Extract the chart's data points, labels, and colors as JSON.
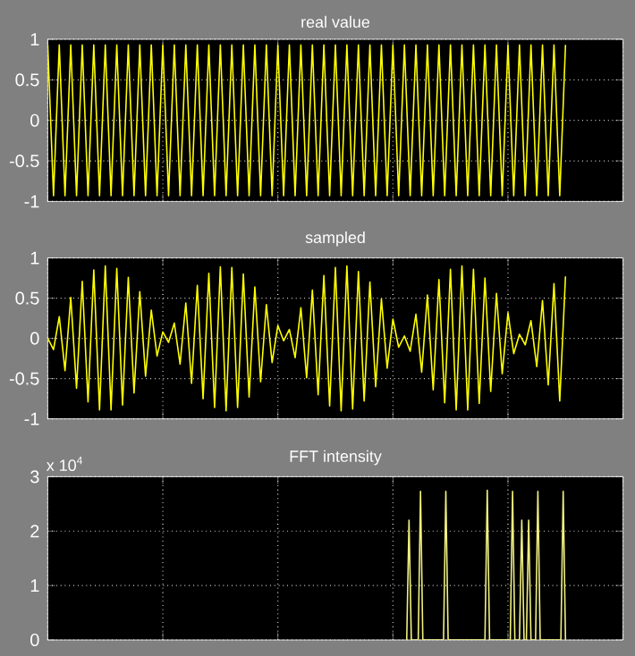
{
  "chart_data": [
    {
      "type": "line",
      "title": "real value",
      "ylim": [
        -1,
        1
      ],
      "yticks": [
        -1,
        -0.5,
        0,
        0.5,
        1
      ],
      "grid": true,
      "categories": [
        null,
        null,
        null,
        null,
        null,
        null,
        null,
        null,
        null,
        null,
        null,
        null,
        null,
        null,
        null,
        null,
        null,
        null,
        null,
        null,
        null,
        null,
        null,
        null,
        null,
        null,
        null,
        null,
        null,
        null,
        null,
        null,
        null,
        null,
        null,
        null,
        null,
        null,
        null,
        null,
        null,
        null,
        null,
        null,
        null,
        null,
        null,
        null,
        null,
        null,
        null,
        null,
        null,
        null,
        null,
        null,
        null,
        null,
        null,
        null,
        null,
        null,
        null,
        null,
        null,
        null,
        null,
        null,
        null,
        null,
        null,
        null,
        null,
        null,
        null,
        null,
        null,
        null,
        null,
        null,
        null,
        null,
        null,
        null,
        null,
        null,
        null,
        null,
        null,
        null,
        null,
        null,
        null,
        null,
        null,
        null,
        null,
        null,
        null,
        null,
        null
      ],
      "series": [
        {
          "color": "#ffff00",
          "values": [
            0.93,
            -0.93,
            0.93,
            -0.93,
            0.93,
            -0.93,
            0.93,
            -0.93,
            0.93,
            -0.93,
            0.93,
            -0.93,
            0.93,
            -0.93,
            0.93,
            -0.93,
            0.93,
            -0.93,
            0.93,
            -0.93,
            0.93,
            -0.93,
            0.93,
            -0.93,
            0.93,
            -0.93,
            0.93,
            -0.93,
            0.93,
            -0.93,
            0.93,
            -0.93,
            0.93,
            -0.93,
            0.93,
            -0.93,
            0.93,
            -0.93,
            0.93,
            -0.93,
            0.93,
            -0.93,
            0.93,
            -0.93,
            0.93,
            -0.93,
            0.93,
            -0.93,
            0.93,
            -0.93,
            0.93,
            -0.93,
            0.93,
            -0.93,
            0.93,
            -0.93,
            0.93,
            -0.93,
            0.93,
            -0.93,
            0.93,
            -0.93,
            0.93,
            -0.93,
            0.93,
            -0.93,
            0.93,
            -0.93,
            0.93,
            -0.93,
            0.93,
            -0.93,
            0.93,
            -0.93,
            0.93,
            -0.93,
            0.93,
            -0.93,
            0.93,
            -0.93,
            0.93,
            -0.93,
            0.93,
            -0.93,
            0.93,
            -0.93,
            0.93,
            -0.93,
            0.93,
            -0.93,
            0.93,
            null,
            null,
            null,
            null,
            null,
            null,
            null,
            null,
            null,
            null
          ]
        }
      ]
    },
    {
      "type": "line",
      "title": "sampled",
      "ylim": [
        -1,
        1
      ],
      "yticks": [
        -1,
        -0.5,
        0,
        0.5,
        1
      ],
      "grid": true,
      "categories": [
        null,
        null,
        null,
        null,
        null,
        null,
        null,
        null,
        null,
        null,
        null,
        null,
        null,
        null,
        null,
        null,
        null,
        null,
        null,
        null,
        null,
        null,
        null,
        null,
        null,
        null,
        null,
        null,
        null,
        null,
        null,
        null,
        null,
        null,
        null,
        null,
        null,
        null,
        null,
        null,
        null,
        null,
        null,
        null,
        null,
        null,
        null,
        null,
        null,
        null,
        null,
        null,
        null,
        null,
        null,
        null,
        null,
        null,
        null,
        null,
        null,
        null,
        null,
        null,
        null,
        null,
        null,
        null,
        null,
        null,
        null,
        null,
        null,
        null,
        null,
        null,
        null,
        null,
        null,
        null,
        null,
        null,
        null,
        null,
        null,
        null,
        null,
        null,
        null,
        null,
        null,
        null,
        null,
        null,
        null,
        null,
        null,
        null,
        null,
        null,
        null
      ],
      "series": [
        {
          "color": "#ffff00",
          "values": [
            0,
            -0.14,
            0.27,
            -0.4,
            0.51,
            -0.62,
            0.71,
            -0.79,
            0.85,
            -0.89,
            0.9,
            -0.89,
            0.87,
            -0.83,
            0.76,
            -0.68,
            0.58,
            -0.47,
            0.35,
            -0.22,
            0.08,
            -0.05,
            0.19,
            -0.32,
            0.44,
            -0.56,
            0.66,
            -0.75,
            0.81,
            -0.86,
            0.89,
            -0.9,
            0.88,
            -0.86,
            0.8,
            -0.73,
            0.64,
            -0.54,
            0.42,
            -0.3,
            0.16,
            -0.03,
            0.11,
            -0.24,
            0.38,
            -0.49,
            0.6,
            -0.7,
            0.78,
            -0.84,
            0.88,
            -0.9,
            0.9,
            -0.88,
            0.83,
            -0.78,
            0.7,
            -0.6,
            0.49,
            -0.37,
            0.24,
            -0.11,
            0.03,
            -0.16,
            0.3,
            -0.42,
            0.54,
            -0.64,
            0.73,
            -0.8,
            0.86,
            -0.89,
            0.9,
            -0.89,
            0.86,
            -0.81,
            0.75,
            -0.66,
            0.56,
            -0.44,
            0.32,
            -0.19,
            0.05,
            -0.08,
            0.22,
            -0.35,
            0.47,
            -0.58,
            0.68,
            -0.78,
            0.77,
            null,
            null,
            null,
            null,
            null,
            null,
            null,
            null,
            null,
            null
          ]
        }
      ]
    },
    {
      "type": "line",
      "title": "FFT intensity",
      "annotations": [
        "x 10$^{4}$"
      ],
      "ylim": [
        0,
        3
      ],
      "yticks": [
        0,
        1,
        2,
        3
      ],
      "grid": true,
      "categories": [
        null,
        null,
        null,
        null,
        null,
        null,
        null,
        null,
        null,
        null,
        null,
        null,
        null,
        null,
        null,
        null,
        null,
        null,
        null,
        null,
        null,
        null,
        null,
        null,
        null,
        null,
        null,
        null,
        null,
        null,
        null,
        null,
        null,
        null,
        null,
        null,
        null,
        null,
        null,
        null,
        null,
        null,
        null,
        null,
        null,
        null,
        null,
        null,
        null,
        null,
        null,
        null,
        null,
        null,
        null,
        null,
        null,
        null,
        null,
        null,
        null,
        null,
        null,
        null,
        null,
        null,
        null,
        null,
        null,
        null,
        null,
        null,
        null,
        null,
        null,
        null,
        null,
        null,
        null,
        null,
        null,
        null,
        null,
        null,
        null,
        null,
        null,
        null,
        null,
        null,
        null,
        null,
        null,
        null,
        null,
        null,
        null,
        null,
        null,
        null,
        null,
        null,
        null,
        null,
        null,
        null,
        null,
        null,
        null,
        null,
        null,
        null,
        null,
        null,
        null,
        null,
        null,
        null,
        null,
        null,
        null,
        null,
        null,
        null,
        null,
        null,
        null,
        null,
        null,
        null,
        null,
        null,
        null,
        null,
        null,
        null,
        null,
        null,
        null,
        null,
        null,
        null,
        null,
        null,
        null,
        null,
        null,
        null,
        null,
        null,
        null,
        null,
        null,
        null,
        null,
        null,
        null,
        null,
        null,
        null,
        null,
        null,
        null,
        null,
        null,
        null,
        null,
        null,
        null,
        null,
        null,
        null,
        null,
        null,
        null,
        null,
        null,
        null,
        null,
        null,
        null,
        null,
        null,
        null,
        null,
        null,
        null,
        null,
        null,
        null,
        null,
        null,
        null,
        null,
        null,
        null,
        null,
        null,
        null,
        null,
        null,
        null,
        null,
        null,
        null,
        null,
        null,
        null,
        null,
        null,
        null,
        null,
        null,
        null,
        null,
        null,
        null,
        null,
        null,
        null,
        null,
        null,
        null,
        null,
        null,
        null,
        null,
        null,
        null,
        null,
        null,
        null,
        null,
        null,
        null,
        null,
        null,
        null,
        null,
        null,
        null,
        null,
        null,
        null,
        null,
        null,
        null,
        null,
        null,
        null,
        null
      ],
      "series": [
        {
          "color": "#f0f080",
          "values": [
            null,
            null,
            null,
            null,
            null,
            null,
            null,
            null,
            null,
            null,
            null,
            null,
            null,
            null,
            null,
            null,
            null,
            null,
            null,
            null,
            null,
            null,
            null,
            null,
            null,
            null,
            null,
            null,
            null,
            null,
            null,
            null,
            null,
            null,
            null,
            null,
            null,
            null,
            null,
            null,
            null,
            null,
            null,
            null,
            null,
            null,
            null,
            null,
            null,
            null,
            null,
            null,
            null,
            null,
            null,
            null,
            null,
            null,
            null,
            null,
            null,
            null,
            null,
            null,
            null,
            null,
            null,
            null,
            null,
            null,
            null,
            null,
            null,
            null,
            null,
            null,
            null,
            null,
            null,
            null,
            null,
            null,
            null,
            null,
            null,
            null,
            null,
            null,
            null,
            null,
            null,
            null,
            null,
            null,
            null,
            null,
            null,
            null,
            null,
            null,
            null,
            null,
            null,
            null,
            null,
            null,
            null,
            null,
            null,
            null,
            null,
            null,
            null,
            null,
            null,
            null,
            null,
            null,
            null,
            null,
            null,
            null,
            null,
            null,
            null,
            null,
            null,
            null,
            null,
            null,
            null,
            null,
            null,
            null,
            null,
            null,
            null,
            null,
            null,
            null,
            null,
            null,
            null,
            null,
            null,
            null,
            null,
            null,
            null,
            null,
            null,
            null,
            null,
            null,
            null,
            null,
            0,
            2.2,
            0,
            0,
            0,
            0,
            2.73,
            0,
            0,
            0,
            0,
            0,
            0,
            0,
            0,
            0,
            0,
            2.73,
            0,
            0,
            0,
            0,
            0,
            0,
            0,
            0,
            0,
            0,
            0,
            0,
            0,
            0,
            0,
            0,
            0,
            2.75,
            0,
            0,
            0,
            0,
            0,
            0,
            0,
            0,
            0,
            0,
            2.73,
            0,
            0,
            0,
            2.2,
            0,
            0,
            2.2,
            0,
            0,
            0,
            2.73,
            0,
            0,
            0,
            0,
            0,
            0,
            0,
            0,
            0,
            0,
            2.73,
            0,
            null,
            null,
            null,
            null,
            null,
            null,
            null,
            null,
            null,
            null,
            null,
            null,
            null,
            null,
            null,
            null,
            null,
            null,
            null,
            null,
            null,
            null,
            null,
            null,
            null
          ]
        }
      ]
    }
  ]
}
